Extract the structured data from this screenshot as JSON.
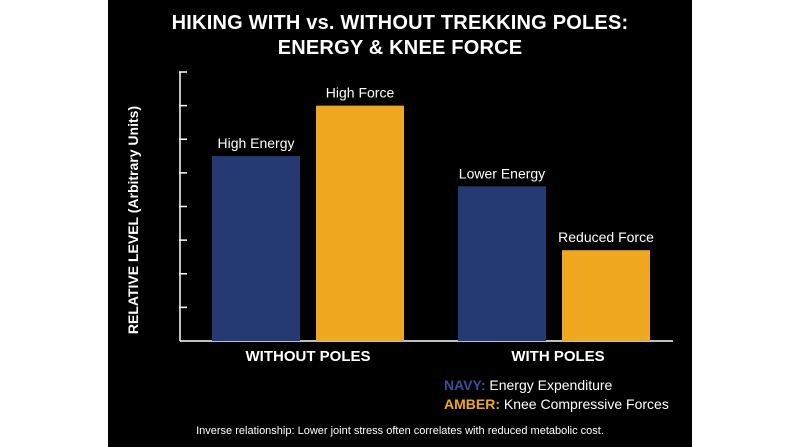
{
  "chart_data": {
    "type": "bar",
    "title_line1": "HIKING WITH vs. WITHOUT TREKKING POLES:",
    "title_line2": "ENERGY & KNEE FORCE",
    "ylabel": "RELATIVE LEVEL (Arbitrary Units)",
    "xlabel": "",
    "categories": [
      "WITHOUT POLES",
      "WITH POLES"
    ],
    "series": [
      {
        "name": "Energy Expenditure",
        "color": "#253a73",
        "values": [
          5.5,
          4.6
        ],
        "labels": [
          "High Energy",
          "Lower Energy"
        ]
      },
      {
        "name": "Knee Compressive Forces",
        "color": "#f0a820",
        "values": [
          7.0,
          2.7
        ],
        "labels": [
          "High Force",
          "Reduced Force"
        ]
      }
    ],
    "ylim": [
      0,
      8
    ],
    "ytick_count": 8,
    "grid": false,
    "legend_placement": "bottom-right"
  },
  "legend": {
    "navy_key": "NAVY:",
    "navy_text": "Energy Expenditure",
    "amber_key": "AMBER:",
    "amber_text": "Knee Compressive Forces"
  },
  "note": "Inverse relationship: Lower joint stress often correlates with reduced metabolic cost."
}
